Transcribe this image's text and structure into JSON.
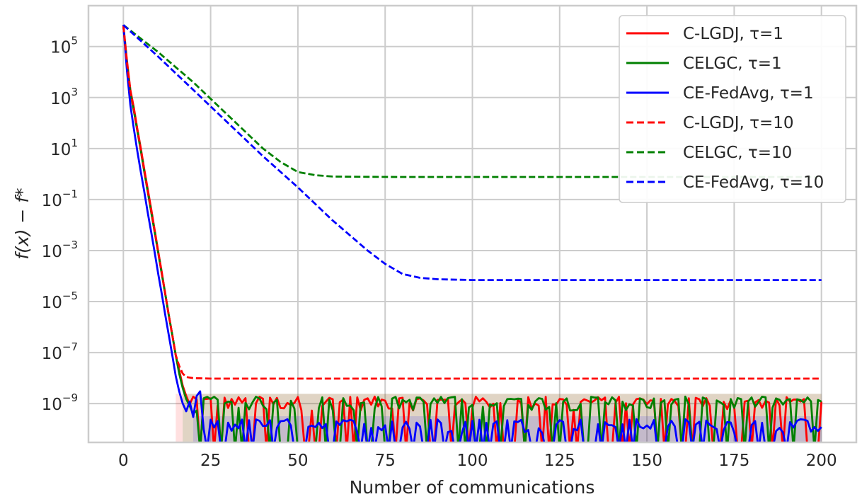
{
  "chart_data": {
    "type": "line",
    "title": "",
    "xlabel": "Number of communications",
    "ylabel": "f(x) − f*",
    "xlim": [
      -10,
      210
    ],
    "ylim": [
      3e-11,
      4000000.0
    ],
    "yscale": "log",
    "grid": true,
    "legend_position": "top-right",
    "x_ticks": [
      0,
      25,
      50,
      75,
      100,
      125,
      150,
      175,
      200
    ],
    "x_tick_labels": [
      "0",
      "25",
      "50",
      "75",
      "100",
      "125",
      "150",
      "175",
      "200"
    ],
    "y_ticks": [
      100000.0,
      1000.0,
      10,
      0.1,
      0.001,
      1e-05,
      1e-07,
      1e-09
    ],
    "y_tick_bases": [
      "10",
      "10",
      "10",
      "10",
      "10",
      "10",
      "10",
      "10"
    ],
    "y_tick_exponents": [
      "5",
      "3",
      "1",
      "−1",
      "−3",
      "−5",
      "−7",
      "−9"
    ],
    "series": [
      {
        "name": "C-LGDJ, τ=1",
        "color": "#ff0000",
        "style": "solid",
        "x": [
          0,
          1,
          2,
          3,
          4,
          5,
          6,
          7,
          8,
          9,
          10,
          11,
          12,
          13,
          14,
          15,
          16,
          17,
          18
        ],
        "y": [
          700000,
          30000,
          2000,
          400,
          60,
          10,
          1.5,
          0.25,
          0.04,
          0.006,
          0.0009,
          0.00014,
          2e-05,
          3e-06,
          5e-07,
          8e-08,
          2e-08,
          5e-09,
          2e-09
        ],
        "noise_floor": 1.5e-09
      },
      {
        "name": "CELGC, τ=1",
        "color": "#008000",
        "style": "solid",
        "x": [
          0,
          1,
          2,
          3,
          4,
          5,
          6,
          7,
          8,
          9,
          10,
          11,
          12,
          13,
          14,
          15,
          16,
          17,
          18,
          19,
          20
        ],
        "y": [
          650000,
          20000,
          1500,
          300,
          50,
          8,
          1.2,
          0.2,
          0.03,
          0.005,
          0.0008,
          0.00012,
          2e-05,
          3e-06,
          5e-07,
          8e-08,
          1.5e-08,
          4e-09,
          1.5e-09,
          8e-10,
          4e-10
        ],
        "noise_floor": 1.5e-09
      },
      {
        "name": "CE-FedAvg, τ=1",
        "color": "#0000ff",
        "style": "solid",
        "x": [
          0,
          1,
          2,
          3,
          4,
          5,
          6,
          7,
          8,
          9,
          10,
          11,
          12,
          13,
          14,
          15,
          16,
          17,
          18,
          19,
          20,
          21,
          22,
          23
        ],
        "y": [
          700000,
          12000,
          500,
          60,
          8,
          1.2,
          0.2,
          0.03,
          0.005,
          0.0008,
          0.00012,
          2e-05,
          3e-06,
          5e-07,
          8e-08,
          1.2e-08,
          3e-09,
          1e-09,
          5e-10,
          1.2e-09,
          3e-10,
          2e-09,
          3e-09,
          1e-10
        ],
        "noise_floor": 2e-10
      },
      {
        "name": "C-LGDJ, τ=10",
        "color": "#ff0000",
        "style": "dashed",
        "x": [
          0,
          1,
          2,
          3,
          4,
          5,
          6,
          7,
          8,
          9,
          10,
          11,
          12,
          13,
          14,
          15,
          16,
          17,
          18,
          20,
          25,
          30,
          40,
          60,
          80,
          100,
          120,
          140,
          160,
          180,
          200
        ],
        "y": [
          650000,
          25000,
          1800,
          350,
          55,
          9,
          1.4,
          0.22,
          0.035,
          0.0055,
          0.00085,
          0.00013,
          2e-05,
          3e-06,
          5e-07,
          8e-08,
          3e-08,
          1.5e-08,
          1.1e-08,
          1e-08,
          9.5e-09,
          9.5e-09,
          9.5e-09,
          9.5e-09,
          9.5e-09,
          9.5e-09,
          9.5e-09,
          9.5e-09,
          9.5e-09,
          9.5e-09,
          9.5e-09
        ]
      },
      {
        "name": "CELGC, τ=10",
        "color": "#008000",
        "style": "dashed",
        "x": [
          0,
          10,
          20,
          30,
          40,
          45,
          50,
          55,
          60,
          70,
          80,
          100,
          120,
          140,
          160,
          180,
          200
        ],
        "y": [
          700000,
          60000,
          4000,
          200,
          10,
          3,
          1.2,
          0.9,
          0.8,
          0.78,
          0.77,
          0.77,
          0.77,
          0.77,
          0.77,
          0.77,
          0.77
        ]
      },
      {
        "name": "CE-FedAvg, τ=10",
        "color": "#0000ff",
        "style": "dashed",
        "x": [
          0,
          10,
          20,
          30,
          40,
          50,
          60,
          70,
          75,
          80,
          85,
          90,
          100,
          120,
          140,
          160,
          180,
          200
        ],
        "y": [
          700000,
          40000,
          2000,
          100,
          5,
          0.3,
          0.015,
          0.001,
          0.0003,
          0.00012,
          8.5e-05,
          7.5e-05,
          7e-05,
          7e-05,
          7e-05,
          7e-05,
          7e-05,
          7e-05
        ]
      }
    ]
  }
}
